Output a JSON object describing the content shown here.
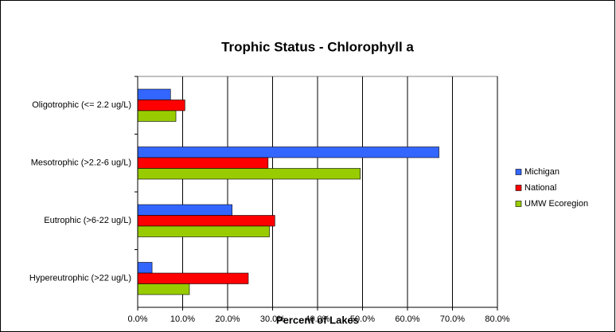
{
  "chart_data": {
    "type": "hbar",
    "title": "Trophic Status - Chlorophyll a",
    "xlabel": "Percent of Lakes",
    "categories": [
      "Oligotrophic (<= 2.2 ug/L)",
      "Mesotrophic (>2.2-6 ug/L)",
      "Eutrophic (>6-22 ug/L)",
      "Hypereutrophic (>22 ug/L)"
    ],
    "series": [
      {
        "name": "Michigan",
        "color": "#3366ff",
        "values": [
          7.3,
          67,
          21,
          3.2
        ]
      },
      {
        "name": "National",
        "color": "#ff0000",
        "values": [
          10.5,
          29,
          30.5,
          24.6
        ]
      },
      {
        "name": "UMW Ecoregion",
        "color": "#99cc00",
        "values": [
          8.5,
          49.5,
          29.3,
          11.5
        ]
      }
    ],
    "xlim": [
      0,
      80
    ],
    "xticks": [
      {
        "value": 0,
        "label": "0.0%"
      },
      {
        "value": 10,
        "label": "10.0%"
      },
      {
        "value": 20,
        "label": "20.0%"
      },
      {
        "value": 30,
        "label": "30.0%"
      },
      {
        "value": 40,
        "label": "40.0%"
      },
      {
        "value": 50,
        "label": "50.0%"
      },
      {
        "value": 60,
        "label": "60.0%"
      },
      {
        "value": 70,
        "label": "70.0%"
      },
      {
        "value": 80,
        "label": "80.0%"
      }
    ],
    "grid": true,
    "legend": "right"
  }
}
